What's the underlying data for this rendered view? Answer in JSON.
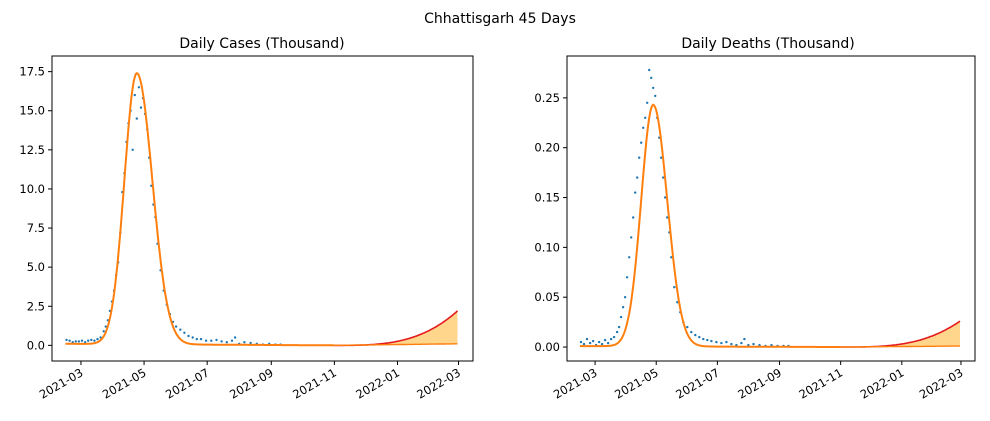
{
  "figure": {
    "suptitle": "Chhattisgarh 45 Days"
  },
  "chart_data": [
    {
      "type": "line",
      "title": "Daily Cases (Thousand)",
      "xlabel": "",
      "ylabel": "",
      "x_range": [
        "2021-02-01",
        "2022-03-15"
      ],
      "ylim": [
        -1.0,
        18.5
      ],
      "x_ticks": [
        "2021-03-01",
        "2021-05-01",
        "2021-07-01",
        "2021-09-01",
        "2021-11-01",
        "2022-01-01",
        "2022-03-01"
      ],
      "x_tick_labels": [
        "2021-03",
        "2021-05",
        "2021-07",
        "2021-09",
        "2021-11",
        "2022-01",
        "2022-03"
      ],
      "y_ticks": [
        0.0,
        2.5,
        5.0,
        7.5,
        10.0,
        12.5,
        15.0,
        17.5
      ],
      "y_tick_labels": [
        "0.0",
        "2.5",
        "5.0",
        "7.5",
        "10.0",
        "12.5",
        "15.0",
        "17.5"
      ],
      "grid": false,
      "colors": {
        "observed": "#1f77b4",
        "fit": "#ff7f0e",
        "projection": "#e41a1c",
        "band": "#ffa500"
      },
      "observed_points": {
        "x": [
          "2021-02-15",
          "2021-02-18",
          "2021-02-21",
          "2021-02-24",
          "2021-02-27",
          "2021-03-02",
          "2021-03-05",
          "2021-03-08",
          "2021-03-11",
          "2021-03-14",
          "2021-03-17",
          "2021-03-20",
          "2021-03-23",
          "2021-03-25",
          "2021-03-27",
          "2021-03-29",
          "2021-03-31",
          "2021-04-02",
          "2021-04-04",
          "2021-04-06",
          "2021-04-08",
          "2021-04-10",
          "2021-04-12",
          "2021-04-14",
          "2021-04-16",
          "2021-04-18",
          "2021-04-20",
          "2021-04-22",
          "2021-04-24",
          "2021-04-26",
          "2021-04-28",
          "2021-04-30",
          "2021-05-02",
          "2021-05-04",
          "2021-05-06",
          "2021-05-08",
          "2021-05-10",
          "2021-05-12",
          "2021-05-14",
          "2021-05-17",
          "2021-05-20",
          "2021-05-23",
          "2021-05-26",
          "2021-05-29",
          "2021-06-01",
          "2021-06-05",
          "2021-06-09",
          "2021-06-13",
          "2021-06-17",
          "2021-06-21",
          "2021-06-25",
          "2021-06-30",
          "2021-07-05",
          "2021-07-10",
          "2021-07-15",
          "2021-07-20",
          "2021-07-25",
          "2021-07-28",
          "2021-08-01",
          "2021-08-06",
          "2021-08-12",
          "2021-08-18",
          "2021-08-24",
          "2021-08-30",
          "2021-09-05",
          "2021-09-10"
        ],
        "y": [
          0.35,
          0.3,
          0.2,
          0.25,
          0.25,
          0.3,
          0.2,
          0.3,
          0.35,
          0.3,
          0.4,
          0.5,
          0.9,
          1.2,
          1.6,
          2.2,
          2.8,
          3.5,
          4.5,
          5.3,
          7.2,
          9.8,
          11.0,
          13.0,
          14.2,
          15.0,
          12.5,
          16.0,
          14.5,
          16.5,
          15.2,
          15.8,
          14.8,
          13.8,
          12.0,
          10.2,
          9.0,
          8.2,
          6.5,
          4.8,
          3.5,
          2.6,
          2.0,
          1.5,
          1.2,
          1.0,
          0.8,
          0.6,
          0.5,
          0.4,
          0.4,
          0.3,
          0.3,
          0.35,
          0.25,
          0.2,
          0.3,
          0.5,
          0.1,
          0.2,
          0.15,
          0.1,
          0.05,
          0.1,
          0.05,
          0.05
        ]
      },
      "fit_curve": {
        "start": "2021-02-14",
        "end": "2021-11-01",
        "base_start": 0.1,
        "base_end": 0.0,
        "peak_date": "2021-04-24",
        "peak_value": 17.4,
        "rise_width_days": 12,
        "fall_width_days": 15
      },
      "projection": {
        "start": "2021-11-01",
        "end": "2022-02-28",
        "end_value_upper": 2.2,
        "end_value_lower": 0.1
      }
    },
    {
      "type": "line",
      "title": "Daily Deaths (Thousand)",
      "xlabel": "",
      "ylabel": "",
      "x_range": [
        "2021-02-01",
        "2022-03-15"
      ],
      "ylim": [
        -0.014,
        0.292
      ],
      "x_ticks": [
        "2021-03-01",
        "2021-05-01",
        "2021-07-01",
        "2021-09-01",
        "2021-11-01",
        "2022-01-01",
        "2022-03-01"
      ],
      "x_tick_labels": [
        "2021-03",
        "2021-05",
        "2021-07",
        "2021-09",
        "2021-11",
        "2022-01",
        "2022-03"
      ],
      "y_ticks": [
        0.0,
        0.05,
        0.1,
        0.15,
        0.2,
        0.25
      ],
      "y_tick_labels": [
        "0.00",
        "0.05",
        "0.10",
        "0.15",
        "0.20",
        "0.25"
      ],
      "grid": false,
      "colors": {
        "observed": "#1f77b4",
        "fit": "#ff7f0e",
        "projection": "#e41a1c",
        "band": "#ffa500"
      },
      "observed_points": {
        "x": [
          "2021-02-15",
          "2021-02-18",
          "2021-02-21",
          "2021-02-24",
          "2021-02-27",
          "2021-03-02",
          "2021-03-05",
          "2021-03-08",
          "2021-03-11",
          "2021-03-14",
          "2021-03-17",
          "2021-03-20",
          "2021-03-23",
          "2021-03-25",
          "2021-03-27",
          "2021-03-29",
          "2021-03-31",
          "2021-04-02",
          "2021-04-04",
          "2021-04-06",
          "2021-04-08",
          "2021-04-10",
          "2021-04-12",
          "2021-04-14",
          "2021-04-16",
          "2021-04-18",
          "2021-04-20",
          "2021-04-22",
          "2021-04-24",
          "2021-04-26",
          "2021-04-28",
          "2021-04-30",
          "2021-05-02",
          "2021-05-04",
          "2021-05-06",
          "2021-05-08",
          "2021-05-10",
          "2021-05-12",
          "2021-05-14",
          "2021-05-16",
          "2021-05-19",
          "2021-05-22",
          "2021-05-25",
          "2021-05-28",
          "2021-06-01",
          "2021-06-05",
          "2021-06-09",
          "2021-06-13",
          "2021-06-17",
          "2021-06-21",
          "2021-06-25",
          "2021-06-30",
          "2021-07-05",
          "2021-07-10",
          "2021-07-15",
          "2021-07-20",
          "2021-07-25",
          "2021-07-28",
          "2021-08-01",
          "2021-08-06",
          "2021-08-12",
          "2021-08-18",
          "2021-08-24",
          "2021-08-30",
          "2021-09-05",
          "2021-09-10"
        ],
        "y": [
          0.005,
          0.003,
          0.008,
          0.004,
          0.006,
          0.002,
          0.005,
          0.003,
          0.007,
          0.004,
          0.008,
          0.01,
          0.015,
          0.02,
          0.03,
          0.04,
          0.05,
          0.07,
          0.09,
          0.11,
          0.13,
          0.155,
          0.17,
          0.19,
          0.205,
          0.22,
          0.23,
          0.245,
          0.278,
          0.27,
          0.26,
          0.252,
          0.23,
          0.21,
          0.19,
          0.17,
          0.15,
          0.13,
          0.115,
          0.09,
          0.06,
          0.045,
          0.035,
          0.025,
          0.02,
          0.015,
          0.012,
          0.01,
          0.008,
          0.007,
          0.006,
          0.005,
          0.004,
          0.005,
          0.003,
          0.002,
          0.004,
          0.008,
          0.002,
          0.003,
          0.002,
          0.001,
          0.002,
          0.001,
          0.001,
          0.001
        ]
      },
      "fit_curve": {
        "start": "2021-02-14",
        "end": "2021-11-01",
        "base_start": 0.001,
        "base_end": 0.0,
        "peak_date": "2021-04-28",
        "peak_value": 0.243,
        "rise_width_days": 12,
        "fall_width_days": 14
      },
      "projection": {
        "start": "2021-11-01",
        "end": "2022-02-28",
        "end_value_upper": 0.026,
        "end_value_lower": 0.001
      }
    }
  ]
}
